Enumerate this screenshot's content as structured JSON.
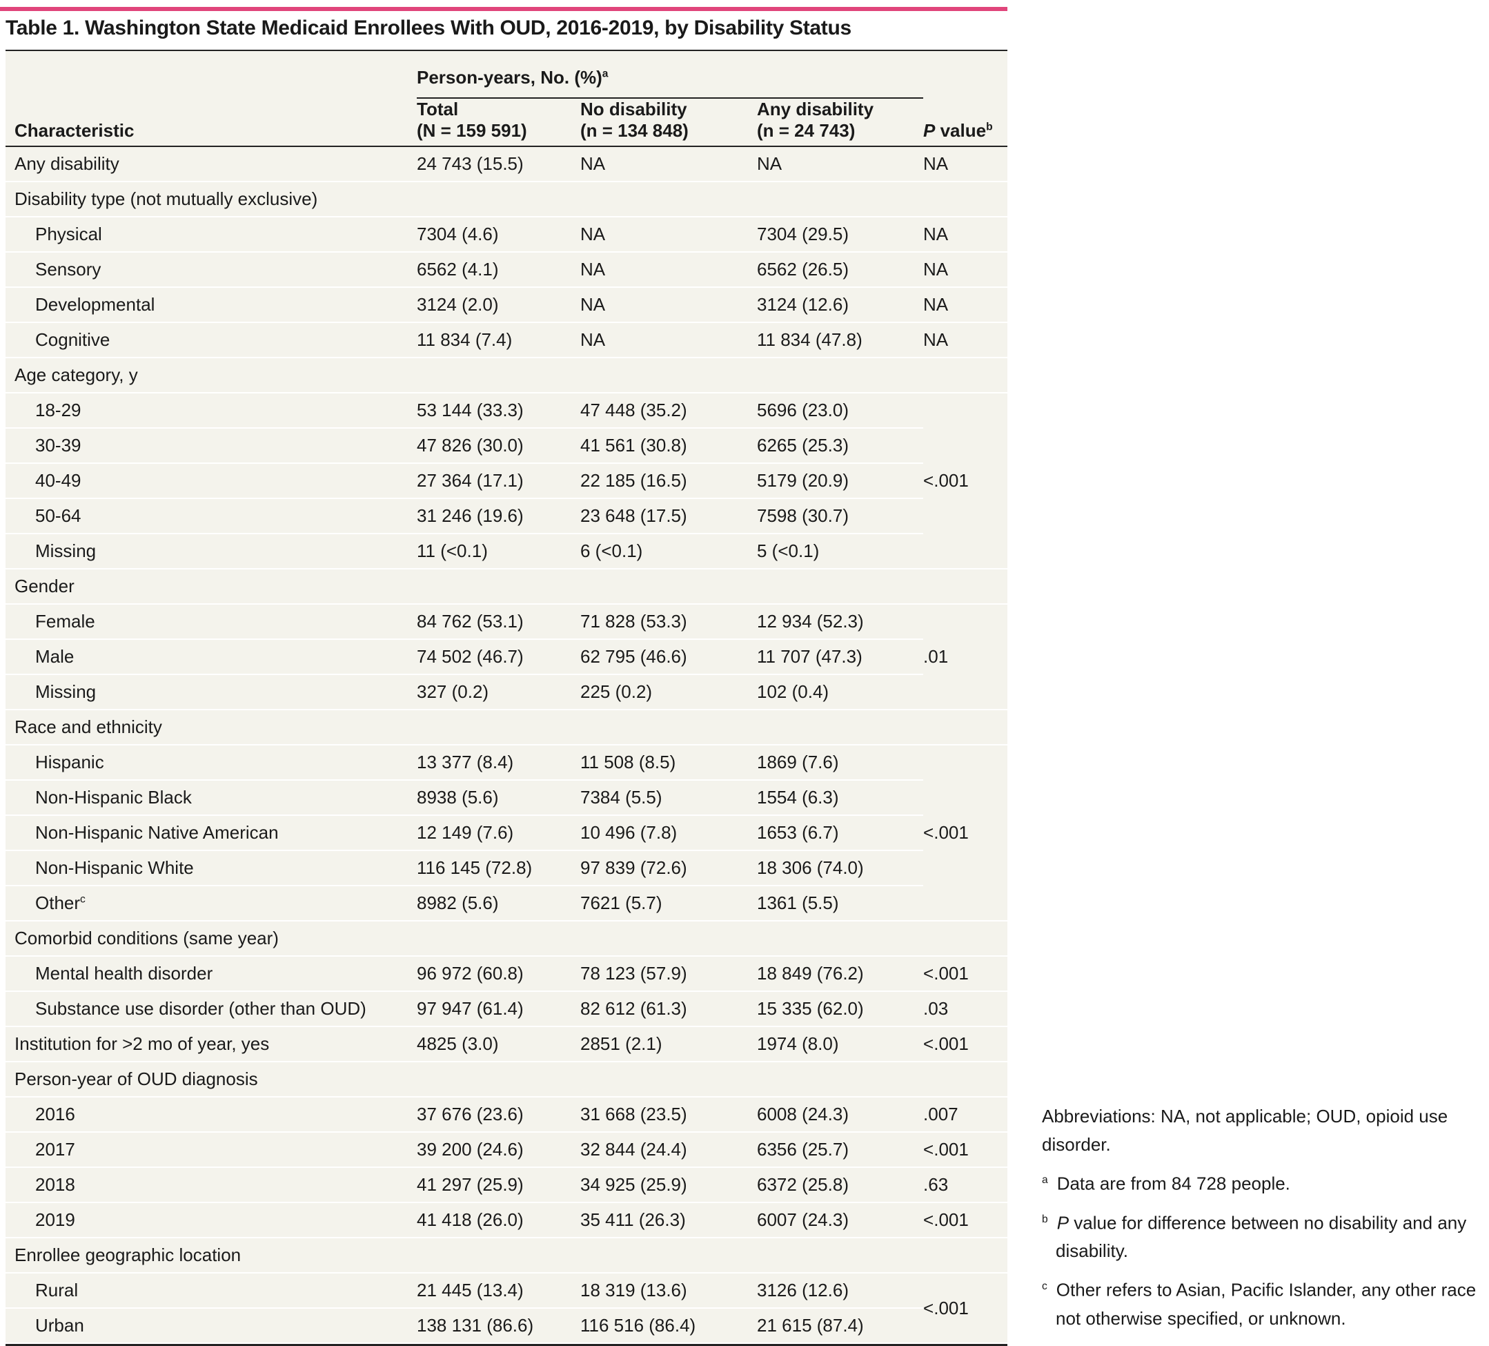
{
  "title": "Table 1. Washington State Medicaid Enrollees With OUD, 2016-2019, by Disability Status",
  "header": {
    "characteristic": "Characteristic",
    "group": {
      "text": "Person-years, No. (%)",
      "note": "a"
    },
    "columns": [
      {
        "name": "Total",
        "n": "(N = 159 591)"
      },
      {
        "name": "No disability",
        "n": "(n = 134 848)"
      },
      {
        "name": "Any disability",
        "n": "(n = 24 743)"
      }
    ],
    "p_value": {
      "italic": "P",
      "text": " value",
      "note": "b"
    }
  },
  "sections": [
    {
      "label": "Any disability",
      "cells": [
        "24 743 (15.5)",
        "NA",
        "NA"
      ],
      "p_value": "NA"
    },
    {
      "label": "Disability type (not mutually exclusive)",
      "rows": [
        {
          "label": "Physical",
          "cells": [
            "7304 (4.6)",
            "NA",
            "7304 (29.5)"
          ],
          "p_value": "NA"
        },
        {
          "label": "Sensory",
          "cells": [
            "6562 (4.1)",
            "NA",
            "6562 (26.5)"
          ],
          "p_value": "NA"
        },
        {
          "label": "Developmental",
          "cells": [
            "3124 (2.0)",
            "NA",
            "3124 (12.6)"
          ],
          "p_value": "NA"
        },
        {
          "label": "Cognitive",
          "cells": [
            "11 834 (7.4)",
            "NA",
            "11 834 (47.8)"
          ],
          "p_value": "NA"
        }
      ]
    },
    {
      "label": "Age category, y",
      "p_value": "<.001",
      "rows": [
        {
          "label": "18-29",
          "cells": [
            "53 144 (33.3)",
            "47 448 (35.2)",
            "5696 (23.0)"
          ]
        },
        {
          "label": "30-39",
          "cells": [
            "47 826 (30.0)",
            "41 561 (30.8)",
            "6265 (25.3)"
          ]
        },
        {
          "label": "40-49",
          "cells": [
            "27 364 (17.1)",
            "22 185 (16.5)",
            "5179 (20.9)"
          ]
        },
        {
          "label": "50-64",
          "cells": [
            "31 246 (19.6)",
            "23 648 (17.5)",
            "7598 (30.7)"
          ]
        },
        {
          "label": "Missing",
          "cells": [
            "11 (<0.1)",
            "6 (<0.1)",
            "5 (<0.1)"
          ]
        }
      ]
    },
    {
      "label": "Gender",
      "p_value": ".01",
      "rows": [
        {
          "label": "Female",
          "cells": [
            "84 762 (53.1)",
            "71 828 (53.3)",
            "12 934 (52.3)"
          ]
        },
        {
          "label": "Male",
          "cells": [
            "74 502 (46.7)",
            "62 795 (46.6)",
            "11 707 (47.3)"
          ]
        },
        {
          "label": "Missing",
          "cells": [
            "327 (0.2)",
            "225 (0.2)",
            "102 (0.4)"
          ]
        }
      ]
    },
    {
      "label": "Race and ethnicity",
      "p_value": "<.001",
      "rows": [
        {
          "label": "Hispanic",
          "cells": [
            "13 377 (8.4)",
            "11 508 (8.5)",
            "1869 (7.6)"
          ]
        },
        {
          "label": "Non-Hispanic Black",
          "cells": [
            "8938 (5.6)",
            "7384 (5.5)",
            "1554 (6.3)"
          ]
        },
        {
          "label": "Non-Hispanic Native American",
          "cells": [
            "12 149 (7.6)",
            "10 496 (7.8)",
            "1653 (6.7)"
          ]
        },
        {
          "label": "Non-Hispanic White",
          "cells": [
            "116 145 (72.8)",
            "97 839 (72.6)",
            "18 306 (74.0)"
          ]
        },
        {
          "label": "Other",
          "note": "c",
          "cells": [
            "8982 (5.6)",
            "7621 (5.7)",
            "1361 (5.5)"
          ]
        }
      ]
    },
    {
      "label": "Comorbid conditions (same year)",
      "rows": [
        {
          "label": "Mental health disorder",
          "cells": [
            "96 972 (60.8)",
            "78 123 (57.9)",
            "18 849 (76.2)"
          ],
          "p_value": "<.001"
        },
        {
          "label": "Substance use disorder (other than OUD)",
          "cells": [
            "97 947 (61.4)",
            "82 612 (61.3)",
            "15 335 (62.0)"
          ],
          "p_value": ".03"
        }
      ]
    },
    {
      "label": "Institution for >2 mo of year, yes",
      "cells": [
        "4825 (3.0)",
        "2851 (2.1)",
        "1974 (8.0)"
      ],
      "p_value": "<.001"
    },
    {
      "label": "Person-year of OUD diagnosis",
      "rows": [
        {
          "label": "2016",
          "cells": [
            "37 676 (23.6)",
            "31 668 (23.5)",
            "6008 (24.3)"
          ],
          "p_value": ".007"
        },
        {
          "label": "2017",
          "cells": [
            "39 200 (24.6)",
            "32 844 (24.4)",
            "6356 (25.7)"
          ],
          "p_value": "<.001"
        },
        {
          "label": "2018",
          "cells": [
            "41 297 (25.9)",
            "34 925 (25.9)",
            "6372 (25.8)"
          ],
          "p_value": ".63"
        },
        {
          "label": "2019",
          "cells": [
            "41 418 (26.0)",
            "35 411 (26.3)",
            "6007 (24.3)"
          ],
          "p_value": "<.001"
        }
      ]
    },
    {
      "label": "Enrollee geographic location",
      "p_value": "<.001",
      "rows": [
        {
          "label": "Rural",
          "cells": [
            "21 445 (13.4)",
            "18 319 (13.6)",
            "3126 (12.6)"
          ]
        },
        {
          "label": "Urban",
          "cells": [
            "138 131 (86.6)",
            "116 516 (86.4)",
            "21 615 (87.4)"
          ]
        }
      ]
    }
  ],
  "footnotes": {
    "abbreviations": "Abbreviations: NA, not applicable; OUD, opioid use disorder.",
    "notes": [
      {
        "marker": "a",
        "text": "Data are from 84 728 people."
      },
      {
        "marker": "b",
        "italic": "P",
        "text": " value for difference between no disability and any disability."
      },
      {
        "marker": "c",
        "text": "Other refers to Asian, Pacific Islander, any other race not otherwise specified, or unknown."
      }
    ]
  }
}
